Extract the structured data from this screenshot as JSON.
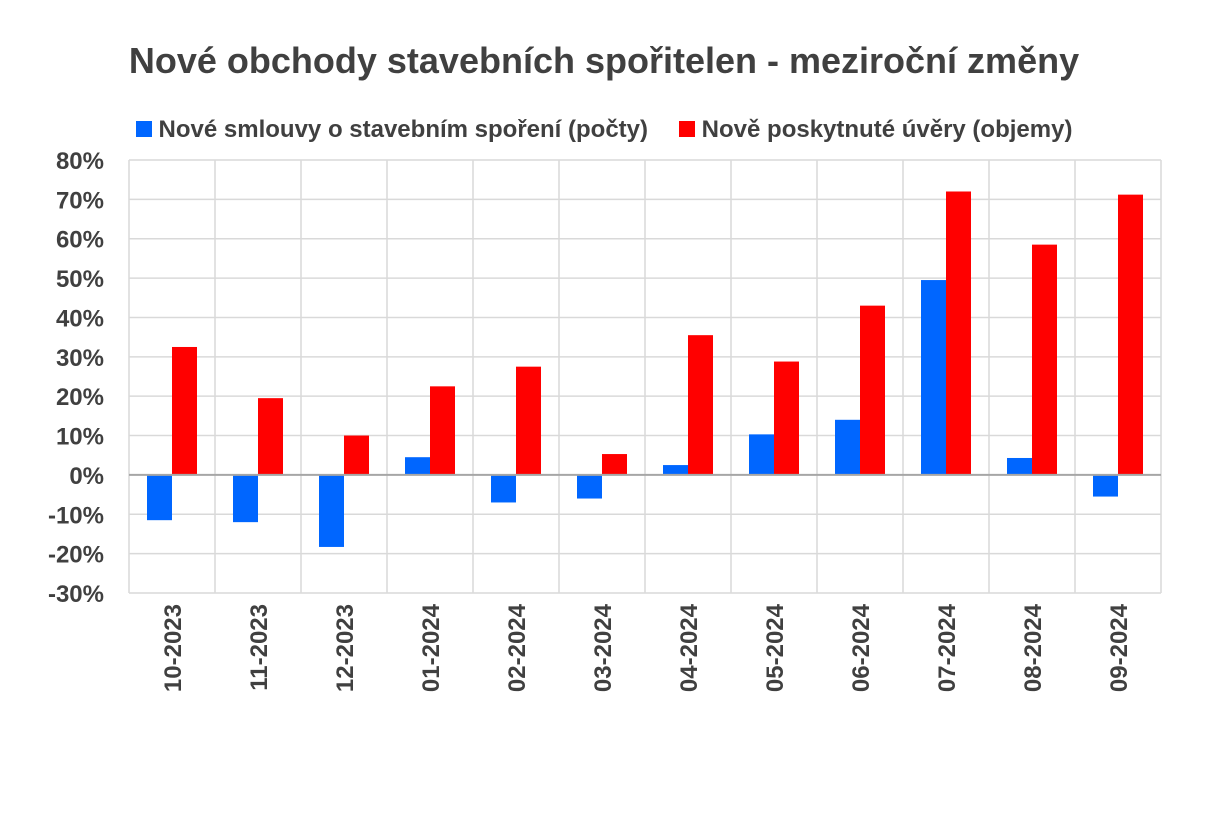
{
  "chart_data": {
    "type": "bar",
    "title": "Nové obchody stavebních spořitelen - meziroční změny",
    "categories": [
      "10-2023",
      "11-2023",
      "12-2023",
      "01-2024",
      "02-2024",
      "03-2024",
      "04-2024",
      "05-2024",
      "06-2024",
      "07-2024",
      "08-2024",
      "09-2024"
    ],
    "series": [
      {
        "name": "Nové smlouvy o stavebním spoření (počty)",
        "color": "#0066FF",
        "values": [
          -11.5,
          -12,
          -18.3,
          4.5,
          -7,
          -6,
          2.5,
          10.3,
          14,
          49.5,
          4.3,
          -5.5
        ]
      },
      {
        "name": "Nově poskytnuté úvěry (objemy)",
        "color": "#FF0000",
        "values": [
          32.5,
          19.5,
          10,
          22.5,
          27.5,
          5.3,
          35.5,
          28.8,
          43,
          72,
          58.5,
          71.2
        ]
      }
    ],
    "ylim": [
      -30,
      80
    ],
    "yticks": [
      -30,
      -20,
      -10,
      0,
      10,
      20,
      30,
      40,
      50,
      60,
      70,
      80
    ],
    "y_tick_labels": [
      "-30%",
      "-20%",
      "-10%",
      "0%",
      "10%",
      "20%",
      "30%",
      "40%",
      "50%",
      "60%",
      "70%",
      "80%"
    ],
    "grid": true,
    "legend_position": "top",
    "xlabel": "",
    "ylabel": ""
  }
}
